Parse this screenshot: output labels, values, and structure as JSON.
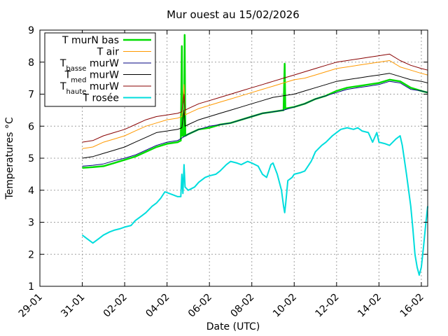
{
  "chart_data": {
    "type": "line",
    "title": "Mur ouest au 15/02/2026",
    "xlabel": "Date (UTC)",
    "ylabel": "Temperatures °C",
    "ylim": [
      1,
      9
    ],
    "xlim": [
      0,
      18.3
    ],
    "x_axis_unit": "days from 29-01",
    "yticks": [
      "1",
      "2",
      "3",
      "4",
      "5",
      "6",
      "7",
      "8",
      "9"
    ],
    "xticks": [
      {
        "pos": 0,
        "label": "29-01"
      },
      {
        "pos": 2,
        "label": "31-01"
      },
      {
        "pos": 4,
        "label": "02-02"
      },
      {
        "pos": 6,
        "label": "04-02"
      },
      {
        "pos": 8,
        "label": "06-02"
      },
      {
        "pos": 10,
        "label": "08-02"
      },
      {
        "pos": 12,
        "label": "10-02"
      },
      {
        "pos": 14,
        "label": "12-02"
      },
      {
        "pos": 16,
        "label": "14-02"
      },
      {
        "pos": 18,
        "label": "16-02"
      }
    ],
    "grid": true,
    "legend_position": "top-left",
    "series": [
      {
        "name": "T murN bas",
        "name_parts": [
          {
            "t": "T murN bas",
            "s": ""
          }
        ],
        "color": "#00dd00",
        "width": 2.5,
        "points": [
          [
            2.0,
            4.7
          ],
          [
            2.5,
            4.72
          ],
          [
            3.0,
            4.75
          ],
          [
            3.5,
            4.85
          ],
          [
            4.0,
            4.95
          ],
          [
            4.5,
            5.05
          ],
          [
            5.0,
            5.2
          ],
          [
            5.5,
            5.35
          ],
          [
            6.0,
            5.45
          ],
          [
            6.5,
            5.5
          ],
          [
            6.65,
            5.55
          ],
          [
            6.7,
            8.5
          ],
          [
            6.72,
            5.7
          ],
          [
            6.8,
            5.7
          ],
          [
            6.83,
            8.85
          ],
          [
            6.86,
            5.7
          ],
          [
            7.0,
            5.75
          ],
          [
            7.5,
            5.9
          ],
          [
            8.0,
            5.95
          ],
          [
            8.5,
            6.05
          ],
          [
            9.0,
            6.1
          ],
          [
            9.5,
            6.2
          ],
          [
            10.0,
            6.3
          ],
          [
            10.5,
            6.4
          ],
          [
            11.0,
            6.45
          ],
          [
            11.5,
            6.5
          ],
          [
            11.55,
            7.95
          ],
          [
            11.58,
            6.55
          ],
          [
            12.0,
            6.6
          ],
          [
            12.5,
            6.7
          ],
          [
            13.0,
            6.85
          ],
          [
            13.5,
            6.95
          ],
          [
            14.0,
            7.1
          ],
          [
            14.5,
            7.2
          ],
          [
            15.0,
            7.25
          ],
          [
            15.5,
            7.3
          ],
          [
            16.0,
            7.35
          ],
          [
            16.5,
            7.45
          ],
          [
            17.0,
            7.4
          ],
          [
            17.5,
            7.2
          ],
          [
            18.0,
            7.1
          ],
          [
            18.3,
            7.05
          ]
        ]
      },
      {
        "name": "T air",
        "name_parts": [
          {
            "t": "T air",
            "s": ""
          }
        ],
        "color": "#ff9900",
        "width": 1,
        "points": [
          [
            2.0,
            5.3
          ],
          [
            2.5,
            5.35
          ],
          [
            3.0,
            5.5
          ],
          [
            3.5,
            5.6
          ],
          [
            4.0,
            5.7
          ],
          [
            4.5,
            5.85
          ],
          [
            5.0,
            6.0
          ],
          [
            5.5,
            6.1
          ],
          [
            6.0,
            6.2
          ],
          [
            6.5,
            6.25
          ],
          [
            6.7,
            6.3
          ],
          [
            6.8,
            7.3
          ],
          [
            6.85,
            6.35
          ],
          [
            7.0,
            6.4
          ],
          [
            7.5,
            6.55
          ],
          [
            8.0,
            6.65
          ],
          [
            8.5,
            6.75
          ],
          [
            9.0,
            6.85
          ],
          [
            9.5,
            6.95
          ],
          [
            10.0,
            7.05
          ],
          [
            10.5,
            7.15
          ],
          [
            11.0,
            7.25
          ],
          [
            11.5,
            7.35
          ],
          [
            12.0,
            7.45
          ],
          [
            12.5,
            7.5
          ],
          [
            13.0,
            7.6
          ],
          [
            13.5,
            7.7
          ],
          [
            14.0,
            7.8
          ],
          [
            14.5,
            7.85
          ],
          [
            15.0,
            7.9
          ],
          [
            15.5,
            7.95
          ],
          [
            16.0,
            8.0
          ],
          [
            16.5,
            8.05
          ],
          [
            17.0,
            7.85
          ],
          [
            17.5,
            7.75
          ],
          [
            18.0,
            7.65
          ],
          [
            18.3,
            7.6
          ]
        ]
      },
      {
        "name": "Tbasse murW",
        "name_parts": [
          {
            "t": "T",
            "s": ""
          },
          {
            "t": "basse",
            "s": "sub"
          },
          {
            "t": " murW",
            "s": ""
          }
        ],
        "color": "#000080",
        "width": 1,
        "points": [
          [
            2.0,
            4.75
          ],
          [
            2.5,
            4.78
          ],
          [
            3.0,
            4.82
          ],
          [
            3.5,
            4.92
          ],
          [
            4.0,
            5.0
          ],
          [
            4.5,
            5.1
          ],
          [
            5.0,
            5.25
          ],
          [
            5.5,
            5.4
          ],
          [
            6.0,
            5.5
          ],
          [
            6.5,
            5.55
          ],
          [
            7.0,
            5.75
          ],
          [
            7.5,
            5.9
          ],
          [
            8.0,
            6.0
          ],
          [
            8.5,
            6.05
          ],
          [
            9.0,
            6.1
          ],
          [
            9.5,
            6.2
          ],
          [
            10.0,
            6.3
          ],
          [
            10.5,
            6.4
          ],
          [
            11.0,
            6.45
          ],
          [
            11.5,
            6.5
          ],
          [
            12.0,
            6.6
          ],
          [
            12.5,
            6.7
          ],
          [
            13.0,
            6.85
          ],
          [
            13.5,
            6.95
          ],
          [
            14.0,
            7.05
          ],
          [
            14.5,
            7.15
          ],
          [
            15.0,
            7.2
          ],
          [
            15.5,
            7.25
          ],
          [
            16.0,
            7.3
          ],
          [
            16.5,
            7.4
          ],
          [
            17.0,
            7.35
          ],
          [
            17.5,
            7.15
          ],
          [
            18.0,
            7.1
          ],
          [
            18.3,
            7.05
          ]
        ]
      },
      {
        "name": "Tmed murW",
        "name_parts": [
          {
            "t": "T",
            "s": ""
          },
          {
            "t": "med",
            "s": "sub"
          },
          {
            "t": " murW",
            "s": ""
          }
        ],
        "color": "#000000",
        "width": 1,
        "points": [
          [
            2.0,
            5.0
          ],
          [
            2.5,
            5.05
          ],
          [
            3.0,
            5.15
          ],
          [
            3.5,
            5.25
          ],
          [
            4.0,
            5.35
          ],
          [
            4.5,
            5.5
          ],
          [
            5.0,
            5.65
          ],
          [
            5.5,
            5.8
          ],
          [
            6.0,
            5.85
          ],
          [
            6.5,
            5.9
          ],
          [
            6.7,
            5.95
          ],
          [
            6.8,
            6.5
          ],
          [
            6.85,
            6.0
          ],
          [
            7.0,
            6.05
          ],
          [
            7.5,
            6.2
          ],
          [
            8.0,
            6.3
          ],
          [
            8.5,
            6.4
          ],
          [
            9.0,
            6.5
          ],
          [
            9.5,
            6.6
          ],
          [
            10.0,
            6.7
          ],
          [
            10.5,
            6.8
          ],
          [
            11.0,
            6.9
          ],
          [
            11.5,
            6.95
          ],
          [
            12.0,
            7.0
          ],
          [
            12.5,
            7.1
          ],
          [
            13.0,
            7.2
          ],
          [
            13.5,
            7.3
          ],
          [
            14.0,
            7.4
          ],
          [
            14.5,
            7.45
          ],
          [
            15.0,
            7.5
          ],
          [
            15.5,
            7.55
          ],
          [
            16.0,
            7.6
          ],
          [
            16.5,
            7.65
          ],
          [
            17.0,
            7.55
          ],
          [
            17.5,
            7.45
          ],
          [
            18.0,
            7.4
          ],
          [
            18.3,
            7.35
          ]
        ]
      },
      {
        "name": "Thaute murW",
        "name_parts": [
          {
            "t": "T",
            "s": ""
          },
          {
            "t": "haute",
            "s": "sub"
          },
          {
            "t": " murW",
            "s": ""
          }
        ],
        "color": "#880000",
        "width": 1,
        "points": [
          [
            2.0,
            5.5
          ],
          [
            2.5,
            5.55
          ],
          [
            3.0,
            5.7
          ],
          [
            3.5,
            5.8
          ],
          [
            4.0,
            5.9
          ],
          [
            4.5,
            6.05
          ],
          [
            5.0,
            6.2
          ],
          [
            5.5,
            6.3
          ],
          [
            6.0,
            6.35
          ],
          [
            6.5,
            6.4
          ],
          [
            6.7,
            6.45
          ],
          [
            6.8,
            7.0
          ],
          [
            6.85,
            6.5
          ],
          [
            7.0,
            6.55
          ],
          [
            7.5,
            6.7
          ],
          [
            8.0,
            6.8
          ],
          [
            8.5,
            6.9
          ],
          [
            9.0,
            7.0
          ],
          [
            9.5,
            7.1
          ],
          [
            10.0,
            7.2
          ],
          [
            10.5,
            7.3
          ],
          [
            11.0,
            7.4
          ],
          [
            11.5,
            7.5
          ],
          [
            12.0,
            7.6
          ],
          [
            12.5,
            7.7
          ],
          [
            13.0,
            7.8
          ],
          [
            13.5,
            7.9
          ],
          [
            14.0,
            8.0
          ],
          [
            14.5,
            8.05
          ],
          [
            15.0,
            8.1
          ],
          [
            15.5,
            8.15
          ],
          [
            16.0,
            8.2
          ],
          [
            16.5,
            8.25
          ],
          [
            17.0,
            8.05
          ],
          [
            17.5,
            7.9
          ],
          [
            18.0,
            7.8
          ],
          [
            18.3,
            7.75
          ]
        ]
      },
      {
        "name": "T rosée",
        "name_parts": [
          {
            "t": "T rosée",
            "s": ""
          }
        ],
        "color": "#00dddd",
        "width": 2,
        "points": [
          [
            2.0,
            2.6
          ],
          [
            2.3,
            2.45
          ],
          [
            2.5,
            2.35
          ],
          [
            2.8,
            2.5
          ],
          [
            3.0,
            2.6
          ],
          [
            3.3,
            2.7
          ],
          [
            3.5,
            2.75
          ],
          [
            3.8,
            2.8
          ],
          [
            4.0,
            2.85
          ],
          [
            4.3,
            2.9
          ],
          [
            4.5,
            3.05
          ],
          [
            4.8,
            3.2
          ],
          [
            5.0,
            3.3
          ],
          [
            5.3,
            3.5
          ],
          [
            5.5,
            3.6
          ],
          [
            5.7,
            3.75
          ],
          [
            5.9,
            3.95
          ],
          [
            6.1,
            3.9
          ],
          [
            6.3,
            3.85
          ],
          [
            6.5,
            3.8
          ],
          [
            6.65,
            3.8
          ],
          [
            6.7,
            4.5
          ],
          [
            6.75,
            3.9
          ],
          [
            6.8,
            4.8
          ],
          [
            6.85,
            4.1
          ],
          [
            7.0,
            4.0
          ],
          [
            7.3,
            4.1
          ],
          [
            7.5,
            4.25
          ],
          [
            7.8,
            4.4
          ],
          [
            8.0,
            4.45
          ],
          [
            8.3,
            4.5
          ],
          [
            8.5,
            4.6
          ],
          [
            8.8,
            4.8
          ],
          [
            9.0,
            4.9
          ],
          [
            9.3,
            4.85
          ],
          [
            9.5,
            4.8
          ],
          [
            9.8,
            4.9
          ],
          [
            10.0,
            4.85
          ],
          [
            10.3,
            4.75
          ],
          [
            10.5,
            4.5
          ],
          [
            10.7,
            4.4
          ],
          [
            10.9,
            4.8
          ],
          [
            11.0,
            4.85
          ],
          [
            11.2,
            4.5
          ],
          [
            11.4,
            4.0
          ],
          [
            11.5,
            3.5
          ],
          [
            11.55,
            3.3
          ],
          [
            11.6,
            3.6
          ],
          [
            11.7,
            4.3
          ],
          [
            11.9,
            4.4
          ],
          [
            12.0,
            4.5
          ],
          [
            12.3,
            4.55
          ],
          [
            12.5,
            4.6
          ],
          [
            12.8,
            4.9
          ],
          [
            13.0,
            5.2
          ],
          [
            13.3,
            5.4
          ],
          [
            13.5,
            5.5
          ],
          [
            13.8,
            5.7
          ],
          [
            14.0,
            5.8
          ],
          [
            14.2,
            5.9
          ],
          [
            14.5,
            5.95
          ],
          [
            14.8,
            5.9
          ],
          [
            15.0,
            5.95
          ],
          [
            15.2,
            5.85
          ],
          [
            15.5,
            5.8
          ],
          [
            15.7,
            5.5
          ],
          [
            15.9,
            5.8
          ],
          [
            16.0,
            5.5
          ],
          [
            16.3,
            5.45
          ],
          [
            16.5,
            5.4
          ],
          [
            16.8,
            5.6
          ],
          [
            17.0,
            5.7
          ],
          [
            17.1,
            5.4
          ],
          [
            17.3,
            4.5
          ],
          [
            17.5,
            3.5
          ],
          [
            17.6,
            2.8
          ],
          [
            17.7,
            2.0
          ],
          [
            17.8,
            1.6
          ],
          [
            17.9,
            1.35
          ],
          [
            18.0,
            1.6
          ],
          [
            18.1,
            2.2
          ],
          [
            18.2,
            2.9
          ],
          [
            18.3,
            3.5
          ]
        ]
      }
    ]
  }
}
